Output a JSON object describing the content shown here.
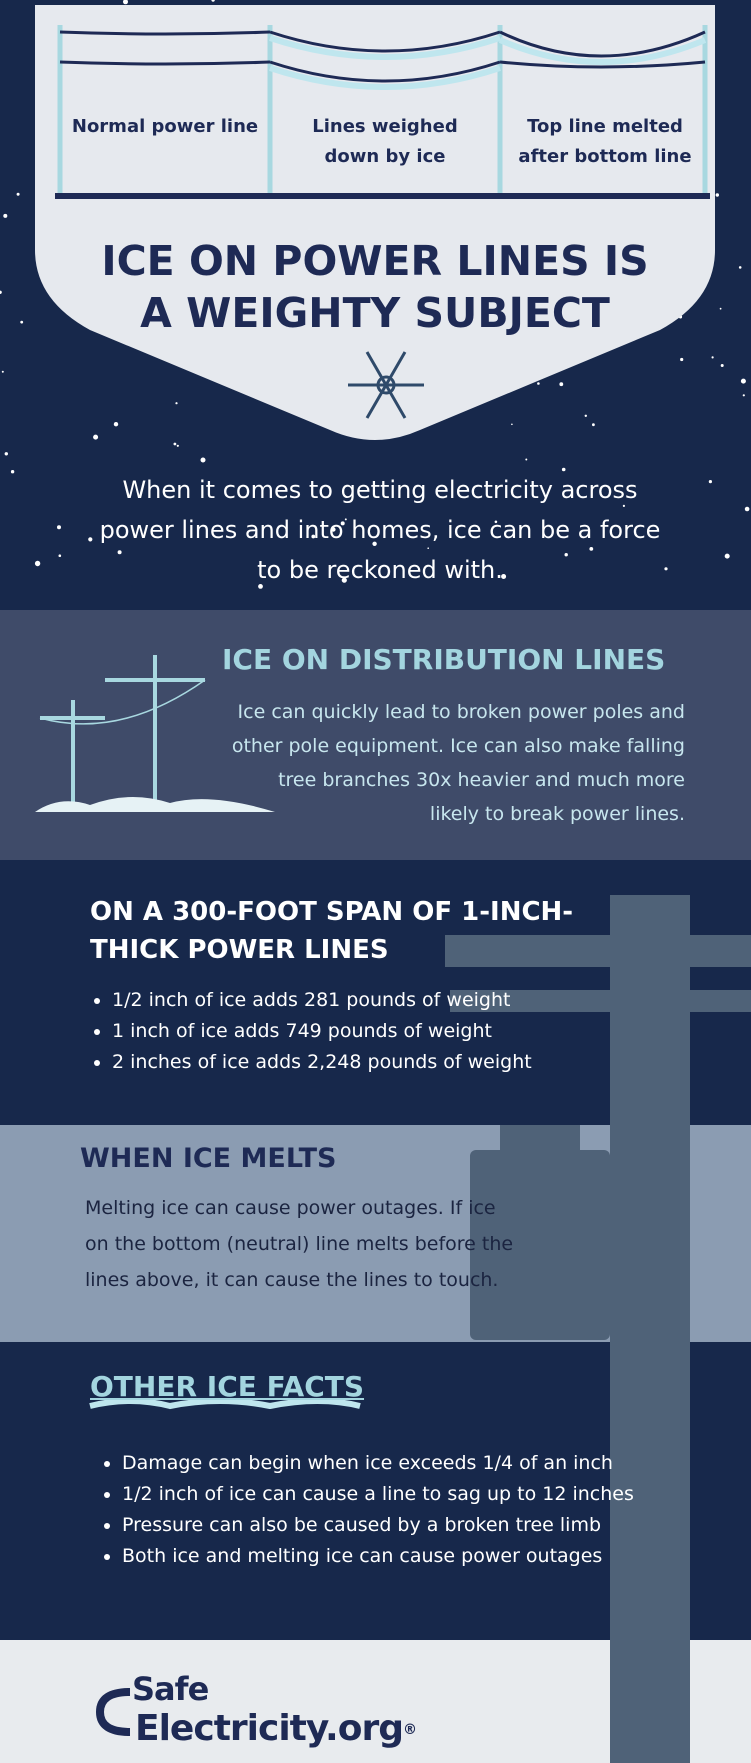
{
  "header": {
    "panels": [
      "Normal power line",
      "Lines weighed down by ice",
      "Top line melted after bottom line"
    ],
    "title": "ICE ON POWER LINES IS A WEIGHTY SUBJECT"
  },
  "intro": "When it comes to getting electricity across power lines and into homes, ice can be a force to be reckoned with.",
  "sections": [
    {
      "heading": "ICE ON DISTRIBUTION LINES",
      "text": "Ice can quickly lead to broken power poles and other pole equipment. Ice can also make falling tree branches 30x heavier and much more likely to break power lines."
    },
    {
      "heading": "ON A 300-FOOT SPAN OF 1-INCH-THICK POWER LINES",
      "bullets": [
        "1/2 inch of ice adds 281 pounds of weight",
        "1 inch of ice adds 749 pounds of weight",
        "2 inches of ice adds 2,248 pounds of weight"
      ]
    },
    {
      "heading": "WHEN ICE MELTS",
      "text": "Melting ice can cause power outages. If ice on the bottom (neutral) line melts before the lines above, it can cause the lines to touch."
    },
    {
      "heading": "OTHER ICE FACTS",
      "bullets": [
        "Damage can begin when ice exceeds 1/4 of an inch",
        "1/2 inch of ice can cause a line to sag up to 12 inches",
        "Pressure can also be caused by a broken tree limb",
        "Both ice and melting ice can cause power outages"
      ]
    }
  ],
  "footer": {
    "logo_line1": "Safe",
    "logo_line2": "Electricity.org",
    "logo_mark": "®"
  }
}
